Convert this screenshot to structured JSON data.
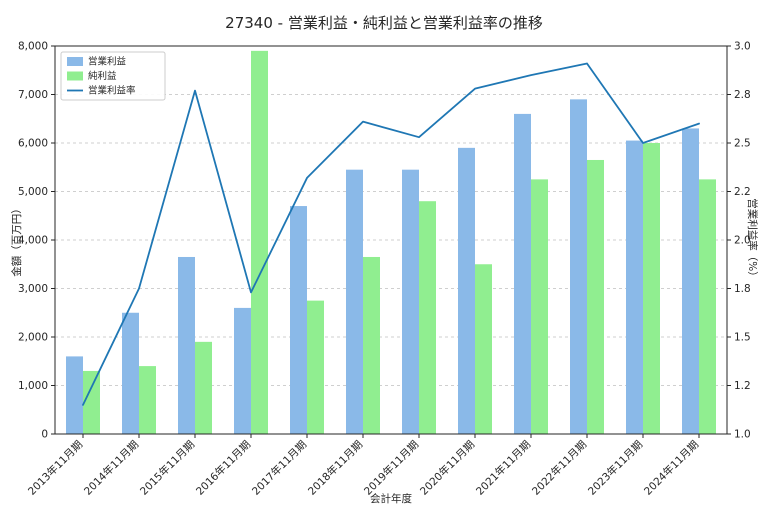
{
  "title": "27340 - 営業利益・純利益と営業利益率の推移",
  "chart_data": {
    "type": "bar+line",
    "title": "27340 - 営業利益・純利益と営業利益率の推移",
    "xlabel": "会計年度",
    "ylabel_left": "金額（百万円）",
    "ylabel_right": "営業利益率（%）",
    "categories": [
      "2013年11月期",
      "2014年11月期",
      "2015年11月期",
      "2016年11月期",
      "2017年11月期",
      "2018年11月期",
      "2019年11月期",
      "2020年11月期",
      "2021年11月期",
      "2022年11月期",
      "2023年11月期",
      "2024年11月期"
    ],
    "series": [
      {
        "name": "営業利益",
        "type": "bar",
        "axis": "left",
        "color": "#8ab9e8",
        "values": [
          1600,
          2500,
          3650,
          2600,
          4700,
          5450,
          5450,
          5900,
          6600,
          6900,
          6050,
          6300
        ]
      },
      {
        "name": "純利益",
        "type": "bar",
        "axis": "left",
        "color": "#90ee90",
        "values": [
          1300,
          1400,
          1900,
          7900,
          2750,
          3650,
          4800,
          3500,
          5250,
          5650,
          6000,
          5250
        ]
      },
      {
        "name": "営業利益率",
        "type": "line",
        "axis": "right",
        "color": "#1f77b4",
        "values": [
          1.15,
          1.75,
          2.77,
          1.73,
          2.32,
          2.61,
          2.53,
          2.78,
          2.85,
          2.91,
          2.5,
          2.6
        ]
      }
    ],
    "ylim_left": [
      0,
      8000
    ],
    "yticks_left": [
      0,
      1000,
      2000,
      3000,
      4000,
      5000,
      6000,
      7000,
      8000
    ],
    "ytick_labels_left": [
      "0",
      "1,000",
      "2,000",
      "3,000",
      "4,000",
      "5,000",
      "6,000",
      "7,000",
      "8,000"
    ],
    "ylim_right": [
      1.0,
      3.0
    ],
    "yticks_right": [
      1.0,
      1.25,
      1.5,
      1.75,
      2.0,
      2.25,
      2.5,
      2.75,
      3.0
    ],
    "ytick_labels_right": [
      "1.0",
      "1.2",
      "1.5",
      "1.8",
      "2.0",
      "2.2",
      "2.5",
      "2.8",
      "3.0"
    ],
    "grid": true,
    "grid_style": "dashed-horizontal",
    "grid_color": "#cfcfcf",
    "legend_position": "upper-left",
    "legend": [
      "営業利益",
      "純利益",
      "営業利益率"
    ],
    "text_color": "#262626",
    "background_color": "#ffffff"
  }
}
